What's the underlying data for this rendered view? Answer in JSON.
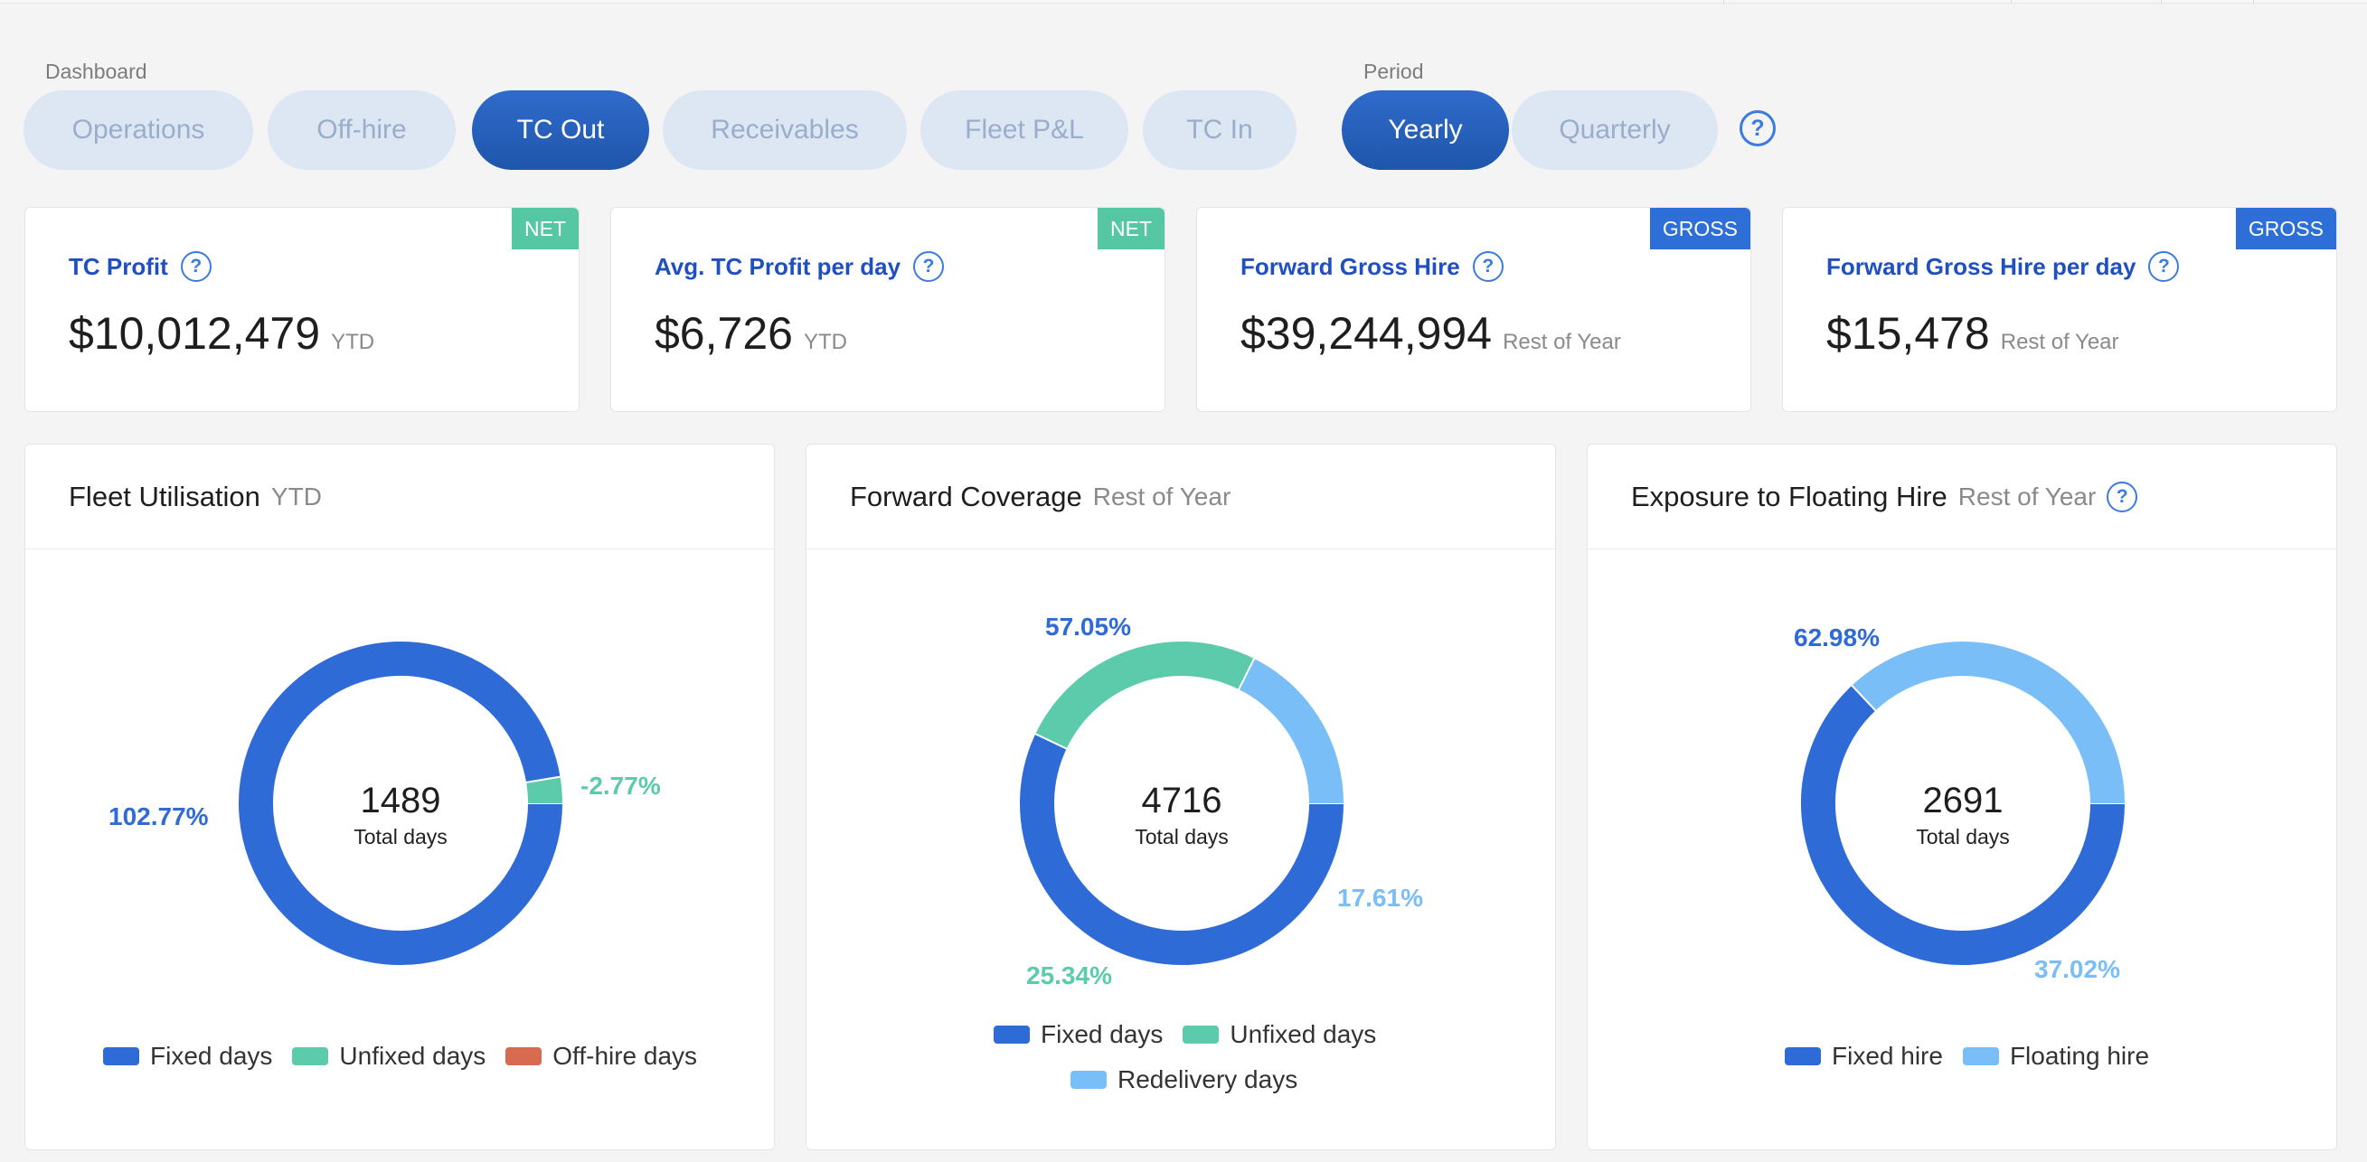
{
  "filters": {
    "dashboard_label": "Dashboard",
    "dashboard_tabs": [
      "Operations",
      "Off-hire",
      "TC Out",
      "Receivables",
      "Fleet P&L",
      "TC In"
    ],
    "dashboard_active": "TC Out",
    "period_label": "Period",
    "period_tabs": [
      "Yearly",
      "Quarterly"
    ],
    "period_active": "Yearly",
    "help_icon": "question-circle-icon"
  },
  "kpis": [
    {
      "title": "TC Profit",
      "value": "$10,012,479",
      "suffix": "YTD",
      "badge": "NET",
      "badge_color": "#55c8a3"
    },
    {
      "title": "Avg. TC Profit per day",
      "value": "$6,726",
      "suffix": "YTD",
      "badge": "NET",
      "badge_color": "#55c8a3"
    },
    {
      "title": "Forward Gross Hire",
      "value": "$39,244,994",
      "suffix": "Rest of Year",
      "badge": "GROSS",
      "badge_color": "#2d6fd6"
    },
    {
      "title": "Forward Gross Hire per day",
      "value": "$15,478",
      "suffix": "Rest of Year",
      "badge": "GROSS",
      "badge_color": "#2d6fd6"
    }
  ],
  "cards": [
    {
      "title": "Fleet Utilisation",
      "subtitle": "YTD",
      "help": false,
      "total": "1489",
      "total_label": "Total days",
      "legend": [
        {
          "name": "Fixed days",
          "color": "#2f6bd6"
        },
        {
          "name": "Unfixed days",
          "color": "#5ccbab"
        },
        {
          "name": "Off-hire days",
          "color": "#d86a50"
        }
      ]
    },
    {
      "title": "Forward Coverage",
      "subtitle": "Rest of Year",
      "help": false,
      "total": "4716",
      "total_label": "Total days",
      "legend": [
        {
          "name": "Fixed days",
          "color": "#2f6bd6"
        },
        {
          "name": "Unfixed days",
          "color": "#5ccbab"
        },
        {
          "name": "Redelivery days",
          "color": "#79bef6"
        }
      ]
    },
    {
      "title": "Exposure to Floating Hire",
      "subtitle": "Rest of Year",
      "help": true,
      "total": "2691",
      "total_label": "Total days",
      "legend": [
        {
          "name": "Fixed hire",
          "color": "#2f6bd6"
        },
        {
          "name": "Floating hire",
          "color": "#79bef6"
        }
      ]
    }
  ],
  "chart_data": [
    {
      "type": "pie",
      "title": "Fleet Utilisation",
      "labels": [
        "Fixed days",
        "Unfixed days"
      ],
      "values": [
        102.77,
        -2.77
      ],
      "value_labels": [
        "102.77%",
        "-2.77%"
      ],
      "colors": [
        "#2f6bd6",
        "#5ccbab"
      ]
    },
    {
      "type": "pie",
      "title": "Forward Coverage",
      "labels": [
        "Fixed days",
        "Unfixed days",
        "Redelivery days"
      ],
      "values": [
        57.05,
        25.34,
        17.61
      ],
      "value_labels": [
        "57.05%",
        "25.34%",
        "17.61%"
      ],
      "colors": [
        "#2f6bd6",
        "#5ccbab",
        "#79bef6"
      ]
    },
    {
      "type": "pie",
      "title": "Exposure to Floating Hire",
      "labels": [
        "Fixed hire",
        "Floating hire"
      ],
      "values": [
        62.98,
        37.02
      ],
      "value_labels": [
        "62.98%",
        "37.02%"
      ],
      "colors": [
        "#2f6bd6",
        "#79bef6"
      ]
    }
  ]
}
